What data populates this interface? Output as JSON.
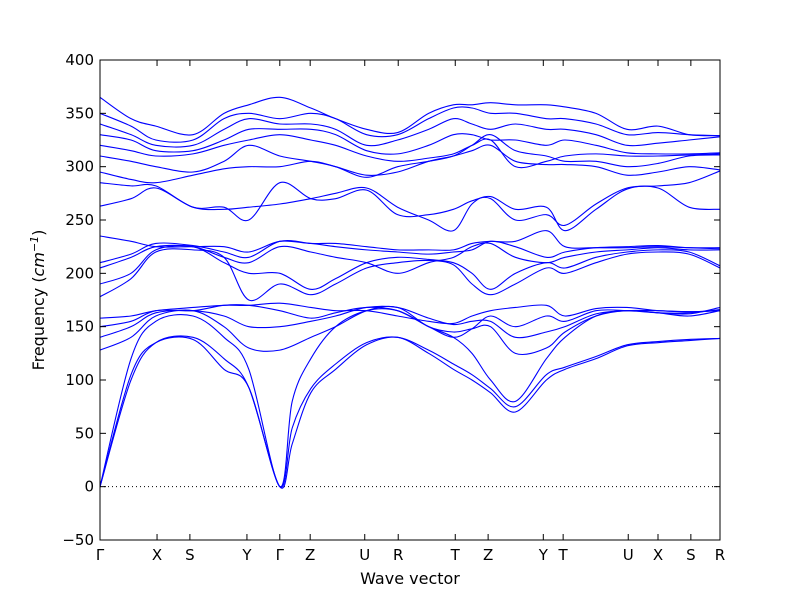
{
  "chart_data": {
    "type": "line",
    "xlabel": "Wave vector",
    "ylabel_main": "Frequency (",
    "ylabel_unit": "cm",
    "ylabel_exp": "−1",
    "ylabel_close": ")",
    "ylim": [
      -50,
      400
    ],
    "yticks": [
      -50,
      0,
      50,
      100,
      150,
      200,
      250,
      300,
      350,
      400
    ],
    "ytick_labels": [
      "−50",
      "0",
      "50",
      "100",
      "150",
      "200",
      "250",
      "300",
      "350",
      "400"
    ],
    "xlim": [
      0,
      1
    ],
    "xticks": [
      {
        "label": "Γ",
        "pos": 0.0
      },
      {
        "label": "X",
        "pos": 0.092
      },
      {
        "label": "S",
        "pos": 0.145
      },
      {
        "label": "Y",
        "pos": 0.237
      },
      {
        "label": "Γ",
        "pos": 0.29
      },
      {
        "label": "Z",
        "pos": 0.339
      },
      {
        "label": "U",
        "pos": 0.427
      },
      {
        "label": "R",
        "pos": 0.481
      },
      {
        "label": "T",
        "pos": 0.573
      },
      {
        "label": "Z",
        "pos": 0.626
      },
      {
        "label": "Y",
        "pos": 0.715
      },
      {
        "label": "T",
        "pos": 0.747
      },
      {
        "label": "U",
        "pos": 0.852
      },
      {
        "label": "X",
        "pos": 0.9
      },
      {
        "label": "S",
        "pos": 0.953
      },
      {
        "label": "R",
        "pos": 1.0
      }
    ],
    "zero_line": {
      "y": 0,
      "style": "dotted",
      "color": "#000000"
    },
    "line_color": "#0000ff",
    "series": [
      {
        "x": [
          0,
          0.05,
          0.09,
          0.15,
          0.2,
          0.24,
          0.29,
          0.31,
          0.34,
          0.38,
          0.43,
          0.48,
          0.53,
          0.57,
          0.6,
          0.63,
          0.67,
          0.72,
          0.75,
          0.8,
          0.85,
          0.9,
          0.95,
          1.0
        ],
        "y": [
          0,
          100,
          135,
          140,
          120,
          93,
          0,
          40,
          88,
          110,
          133,
          140,
          125,
          110,
          100,
          88,
          70,
          100,
          110,
          120,
          132,
          135,
          137,
          139
        ]
      },
      {
        "x": [
          0,
          0.05,
          0.09,
          0.15,
          0.2,
          0.24,
          0.29,
          0.31,
          0.34,
          0.38,
          0.43,
          0.48,
          0.53,
          0.57,
          0.6,
          0.63,
          0.67,
          0.72,
          0.75,
          0.8,
          0.85,
          0.9,
          0.95,
          1.0
        ],
        "y": [
          0,
          105,
          135,
          138,
          110,
          93,
          0,
          55,
          92,
          115,
          135,
          140,
          128,
          115,
          105,
          92,
          75,
          105,
          112,
          122,
          133,
          136,
          138,
          139
        ]
      },
      {
        "x": [
          0,
          0.05,
          0.09,
          0.15,
          0.2,
          0.24,
          0.29,
          0.31,
          0.34,
          0.38,
          0.43,
          0.48,
          0.53,
          0.57,
          0.6,
          0.63,
          0.67,
          0.72,
          0.75,
          0.8,
          0.85,
          0.9,
          0.95,
          1.0
        ],
        "y": [
          0,
          120,
          155,
          160,
          140,
          110,
          0,
          80,
          120,
          150,
          165,
          165,
          150,
          140,
          125,
          100,
          80,
          120,
          140,
          160,
          165,
          163,
          160,
          165
        ]
      },
      {
        "x": [
          0,
          0.05,
          0.09,
          0.15,
          0.2,
          0.24,
          0.29,
          0.34,
          0.38,
          0.43,
          0.48,
          0.53,
          0.57,
          0.6,
          0.63,
          0.67,
          0.72,
          0.75,
          0.8,
          0.85,
          0.9,
          0.95,
          1.0
        ],
        "y": [
          128,
          140,
          160,
          165,
          150,
          130,
          128,
          140,
          150,
          165,
          168,
          150,
          145,
          148,
          150,
          125,
          130,
          145,
          160,
          165,
          163,
          162,
          168
        ]
      },
      {
        "x": [
          0,
          0.05,
          0.09,
          0.15,
          0.2,
          0.24,
          0.29,
          0.34,
          0.38,
          0.43,
          0.48,
          0.53,
          0.57,
          0.6,
          0.63,
          0.67,
          0.72,
          0.75,
          0.8,
          0.85,
          0.9,
          0.95,
          1.0
        ],
        "y": [
          140,
          150,
          163,
          165,
          160,
          150,
          150,
          155,
          160,
          168,
          168,
          158,
          152,
          155,
          155,
          140,
          145,
          150,
          162,
          165,
          165,
          164,
          165
        ]
      },
      {
        "x": [
          0,
          0.05,
          0.09,
          0.15,
          0.2,
          0.24,
          0.29,
          0.34,
          0.38,
          0.43,
          0.48,
          0.53,
          0.57,
          0.6,
          0.63,
          0.67,
          0.72,
          0.75,
          0.8,
          0.85,
          0.9,
          0.95,
          1.0
        ],
        "y": [
          150,
          155,
          165,
          165,
          170,
          170,
          165,
          158,
          163,
          168,
          165,
          150,
          140,
          148,
          160,
          150,
          160,
          155,
          165,
          165,
          163,
          163,
          166
        ]
      },
      {
        "x": [
          0,
          0.05,
          0.09,
          0.15,
          0.2,
          0.24,
          0.29,
          0.34,
          0.38,
          0.43,
          0.48,
          0.53,
          0.57,
          0.6,
          0.63,
          0.67,
          0.72,
          0.75,
          0.8,
          0.85,
          0.9,
          0.95,
          1.0
        ],
        "y": [
          158,
          160,
          165,
          168,
          170,
          170,
          172,
          168,
          165,
          165,
          160,
          155,
          153,
          160,
          165,
          168,
          170,
          160,
          167,
          168,
          165,
          164,
          165
        ]
      },
      {
        "x": [
          0,
          0.05,
          0.09,
          0.15,
          0.2,
          0.24,
          0.29,
          0.34,
          0.38,
          0.43,
          0.48,
          0.53,
          0.57,
          0.6,
          0.63,
          0.67,
          0.72,
          0.75,
          0.8,
          0.85,
          0.9,
          0.95,
          1.0
        ],
        "y": [
          178,
          195,
          220,
          222,
          215,
          175,
          190,
          180,
          190,
          205,
          210,
          212,
          208,
          190,
          180,
          190,
          205,
          200,
          210,
          218,
          220,
          218,
          205
        ]
      },
      {
        "x": [
          0,
          0.05,
          0.09,
          0.15,
          0.2,
          0.24,
          0.29,
          0.34,
          0.38,
          0.43,
          0.48,
          0.53,
          0.57,
          0.6,
          0.63,
          0.67,
          0.72,
          0.75,
          0.8,
          0.85,
          0.9,
          0.95,
          1.0
        ],
        "y": [
          190,
          200,
          222,
          225,
          210,
          200,
          200,
          185,
          195,
          210,
          215,
          213,
          210,
          200,
          185,
          200,
          210,
          205,
          215,
          220,
          222,
          220,
          207
        ]
      },
      {
        "x": [
          0,
          0.05,
          0.09,
          0.15,
          0.2,
          0.24,
          0.29,
          0.34,
          0.38,
          0.43,
          0.48,
          0.53,
          0.57,
          0.6,
          0.63,
          0.67,
          0.72,
          0.75,
          0.8,
          0.85,
          0.9,
          0.95,
          1.0
        ],
        "y": [
          205,
          215,
          225,
          225,
          215,
          210,
          225,
          220,
          215,
          210,
          200,
          210,
          215,
          225,
          228,
          215,
          210,
          215,
          220,
          222,
          224,
          222,
          222
        ]
      },
      {
        "x": [
          0,
          0.05,
          0.09,
          0.15,
          0.2,
          0.24,
          0.29,
          0.34,
          0.38,
          0.43,
          0.48,
          0.53,
          0.57,
          0.6,
          0.63,
          0.67,
          0.72,
          0.75,
          0.8,
          0.85,
          0.9,
          0.95,
          1.0
        ],
        "y": [
          210,
          218,
          228,
          226,
          220,
          215,
          230,
          228,
          225,
          222,
          220,
          218,
          220,
          222,
          230,
          225,
          215,
          220,
          224,
          225,
          226,
          224,
          223
        ]
      },
      {
        "x": [
          0,
          0.05,
          0.09,
          0.15,
          0.2,
          0.24,
          0.29,
          0.34,
          0.38,
          0.43,
          0.48,
          0.53,
          0.57,
          0.6,
          0.63,
          0.67,
          0.72,
          0.75,
          0.8,
          0.85,
          0.9,
          0.95,
          1.0
        ],
        "y": [
          235,
          230,
          225,
          225,
          225,
          220,
          230,
          228,
          228,
          225,
          222,
          222,
          222,
          228,
          230,
          230,
          240,
          225,
          224,
          224,
          225,
          224,
          224
        ]
      },
      {
        "x": [
          0,
          0.05,
          0.09,
          0.15,
          0.2,
          0.24,
          0.29,
          0.34,
          0.38,
          0.43,
          0.48,
          0.53,
          0.57,
          0.6,
          0.63,
          0.67,
          0.72,
          0.75,
          0.8,
          0.85,
          0.9,
          0.95,
          1.0
        ],
        "y": [
          263,
          270,
          280,
          262,
          260,
          262,
          265,
          270,
          275,
          280,
          262,
          250,
          240,
          265,
          272,
          260,
          262,
          240,
          260,
          279,
          280,
          262,
          260
        ]
      },
      {
        "x": [
          0,
          0.05,
          0.09,
          0.15,
          0.2,
          0.24,
          0.29,
          0.34,
          0.38,
          0.43,
          0.48,
          0.53,
          0.57,
          0.6,
          0.63,
          0.67,
          0.72,
          0.75,
          0.8,
          0.85,
          0.9,
          0.95,
          1.0
        ],
        "y": [
          285,
          282,
          282,
          262,
          262,
          250,
          285,
          270,
          270,
          278,
          255,
          255,
          260,
          268,
          270,
          250,
          255,
          245,
          265,
          280,
          282,
          285,
          296
        ]
      },
      {
        "x": [
          0,
          0.05,
          0.09,
          0.15,
          0.2,
          0.24,
          0.29,
          0.34,
          0.38,
          0.43,
          0.48,
          0.53,
          0.57,
          0.6,
          0.63,
          0.67,
          0.72,
          0.75,
          0.8,
          0.85,
          0.9,
          0.95,
          1.0
        ],
        "y": [
          295,
          288,
          285,
          292,
          298,
          300,
          300,
          305,
          300,
          292,
          295,
          305,
          310,
          315,
          320,
          305,
          302,
          302,
          300,
          292,
          295,
          300,
          297
        ]
      },
      {
        "x": [
          0,
          0.05,
          0.09,
          0.15,
          0.2,
          0.24,
          0.29,
          0.34,
          0.38,
          0.43,
          0.48,
          0.53,
          0.57,
          0.6,
          0.63,
          0.67,
          0.72,
          0.75,
          0.8,
          0.85,
          0.9,
          0.95,
          1.0
        ],
        "y": [
          310,
          305,
          300,
          295,
          305,
          320,
          310,
          305,
          300,
          290,
          300,
          305,
          310,
          320,
          330,
          315,
          310,
          305,
          305,
          300,
          303,
          310,
          311
        ]
      },
      {
        "x": [
          0,
          0.05,
          0.09,
          0.15,
          0.2,
          0.24,
          0.29,
          0.34,
          0.38,
          0.43,
          0.48,
          0.53,
          0.57,
          0.6,
          0.63,
          0.67,
          0.72,
          0.75,
          0.8,
          0.85,
          0.9,
          0.95,
          1.0
        ],
        "y": [
          320,
          315,
          310,
          312,
          320,
          325,
          330,
          325,
          320,
          310,
          305,
          308,
          312,
          320,
          325,
          300,
          305,
          310,
          312,
          310,
          310,
          311,
          312
        ]
      },
      {
        "x": [
          0,
          0.05,
          0.09,
          0.15,
          0.2,
          0.24,
          0.29,
          0.34,
          0.38,
          0.43,
          0.48,
          0.53,
          0.57,
          0.6,
          0.63,
          0.67,
          0.72,
          0.75,
          0.8,
          0.85,
          0.9,
          0.95,
          1.0
        ],
        "y": [
          330,
          325,
          315,
          315,
          325,
          335,
          335,
          335,
          330,
          315,
          312,
          320,
          330,
          330,
          325,
          325,
          320,
          325,
          320,
          313,
          312,
          312,
          313
        ]
      },
      {
        "x": [
          0,
          0.05,
          0.09,
          0.15,
          0.2,
          0.24,
          0.29,
          0.34,
          0.38,
          0.43,
          0.48,
          0.53,
          0.57,
          0.6,
          0.63,
          0.67,
          0.72,
          0.75,
          0.8,
          0.85,
          0.9,
          0.95,
          1.0
        ],
        "y": [
          340,
          330,
          320,
          320,
          335,
          345,
          340,
          340,
          335,
          320,
          325,
          335,
          345,
          340,
          335,
          340,
          335,
          335,
          330,
          320,
          322,
          325,
          328
        ]
      },
      {
        "x": [
          0,
          0.05,
          0.09,
          0.15,
          0.2,
          0.24,
          0.29,
          0.34,
          0.38,
          0.43,
          0.48,
          0.53,
          0.57,
          0.6,
          0.63,
          0.67,
          0.72,
          0.75,
          0.8,
          0.85,
          0.9,
          0.95,
          1.0
        ],
        "y": [
          350,
          338,
          325,
          325,
          345,
          350,
          345,
          350,
          345,
          330,
          330,
          345,
          355,
          355,
          350,
          350,
          345,
          345,
          340,
          330,
          332,
          330,
          329
        ]
      },
      {
        "x": [
          0,
          0.05,
          0.09,
          0.15,
          0.2,
          0.24,
          0.29,
          0.34,
          0.38,
          0.43,
          0.48,
          0.53,
          0.57,
          0.6,
          0.63,
          0.67,
          0.72,
          0.75,
          0.8,
          0.85,
          0.9,
          0.95,
          1.0
        ],
        "y": [
          365,
          345,
          338,
          330,
          350,
          358,
          365,
          355,
          345,
          335,
          332,
          350,
          358,
          358,
          360,
          358,
          358,
          356,
          350,
          335,
          338,
          330,
          329
        ]
      }
    ]
  }
}
